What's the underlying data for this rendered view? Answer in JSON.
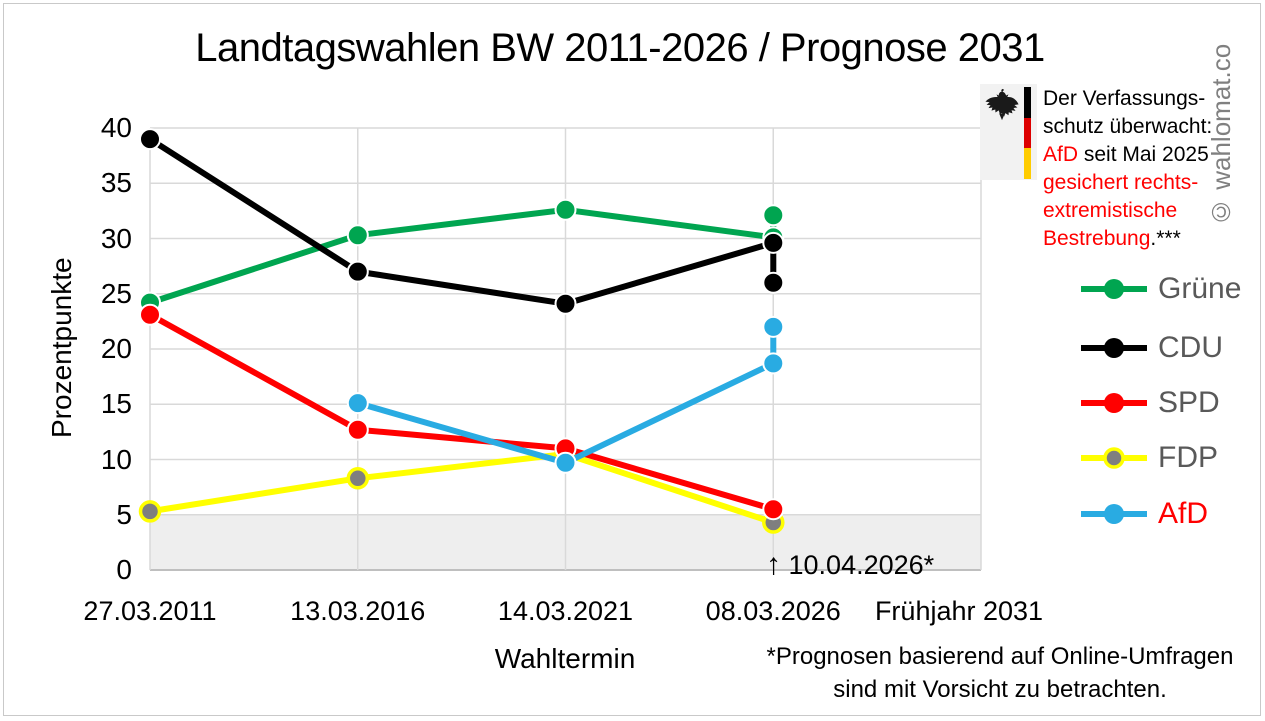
{
  "title": "Landtagswahlen BW 2011-2026 / Prognose 2031",
  "watermark": "© wahlomat.co",
  "chart_data": {
    "type": "line",
    "title": "Landtagswahlen BW 2011-2026 / Prognose 2031",
    "xlabel": "Wahltermin",
    "ylabel": "Prozentpunkte",
    "ylim": [
      0,
      40
    ],
    "yticks": [
      0,
      5,
      10,
      15,
      20,
      25,
      30,
      35,
      40
    ],
    "grid": true,
    "grid_color": "#d9d9d9",
    "axis_color": "#bfbfbf",
    "categories": [
      "27.03.2011",
      "13.03.2016",
      "14.03.2021",
      "08.03.2026",
      "Frühjahr 2031"
    ],
    "threshold_band": {
      "y_from": 0,
      "y_to": 5,
      "color": "#eeeeee",
      "meaning": "5%-Hürde"
    },
    "series": [
      {
        "name": "Grüne",
        "color": "#00a550",
        "points": [
          [
            0,
            24.2
          ],
          [
            1,
            30.3
          ],
          [
            2,
            32.6
          ],
          [
            3,
            30.1
          ],
          [
            3,
            32.1
          ]
        ]
      },
      {
        "name": "CDU",
        "color": "#000000",
        "points": [
          [
            0,
            39.0
          ],
          [
            1,
            27.0
          ],
          [
            2,
            24.1
          ],
          [
            3,
            29.6
          ],
          [
            3,
            26.0
          ]
        ]
      },
      {
        "name": "SPD",
        "color": "#ff0000",
        "points": [
          [
            0,
            23.1
          ],
          [
            1,
            12.7
          ],
          [
            2,
            11.0
          ],
          [
            3,
            5.5
          ]
        ]
      },
      {
        "name": "FDP",
        "color": "#ffff00",
        "marker_fill": "#7f7f7f",
        "marker_stroke": "#ffff00",
        "points": [
          [
            0,
            5.3
          ],
          [
            1,
            8.3
          ],
          [
            2,
            10.5
          ],
          [
            3,
            4.3
          ]
        ]
      },
      {
        "name": "AfD",
        "color": "#29abe2",
        "label_color": "#ff0000",
        "points": [
          [
            1,
            15.1
          ],
          [
            2,
            9.7
          ],
          [
            3,
            18.7
          ],
          [
            3,
            22.0
          ]
        ]
      }
    ],
    "draw_order": [
      0,
      1,
      3,
      2,
      4
    ],
    "legend": {
      "position": "right",
      "label_color": "#595959"
    }
  },
  "annotation": {
    "arrow": "↑",
    "label": "10.04.2026*"
  },
  "infobox": {
    "line1": "Der Verfassungs-",
    "line2": "schutz überwacht:",
    "line3_red": "AfD",
    "line3_rest": " seit Mai 2025",
    "line4": "gesichert rechts-",
    "line5": "extremistische",
    "line6_red": "Bestrebung",
    "line6_rest": ".***",
    "flag_colors": [
      "#000000",
      "#dd0000",
      "#ffcc00"
    ]
  },
  "footnote": {
    "line1": "*Prognosen basierend auf Online-Umfragen",
    "line2": "sind mit Vorsicht zu betrachten."
  }
}
